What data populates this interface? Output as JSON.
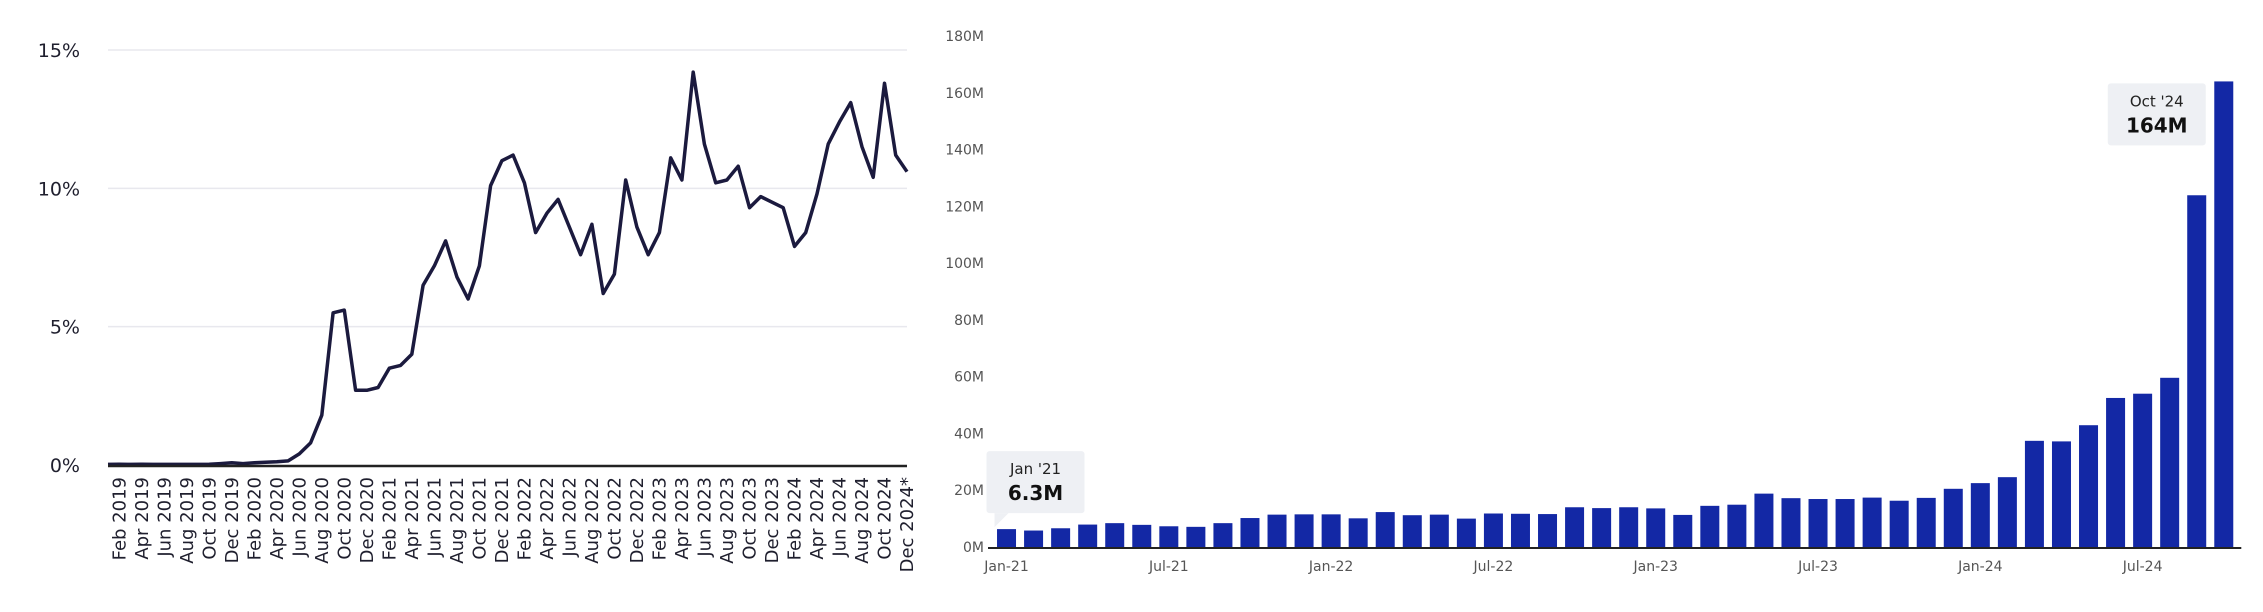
{
  "left_chart": {
    "y_ticks": [
      {
        "value": 0,
        "label": "0%"
      },
      {
        "value": 5,
        "label": "5%"
      },
      {
        "value": 10,
        "label": "10%"
      },
      {
        "value": 15,
        "label": "15%"
      }
    ],
    "x_tick_labels": [
      "Feb 2019",
      "Apr 2019",
      "Jun 2019",
      "Aug 2019",
      "Oct 2019",
      "Dec 2019",
      "Feb 2020",
      "Apr 2020",
      "Jun 2020",
      "Aug 2020",
      "Oct 2020",
      "Dec 2020",
      "Feb 2021",
      "Apr 2021",
      "Jun 2021",
      "Aug 2021",
      "Oct 2021",
      "Dec 2021",
      "Feb 2022",
      "Apr 2022",
      "Jun 2022",
      "Aug 2022",
      "Oct 2022",
      "Dec 2022",
      "Feb 2023",
      "Apr 2023",
      "Jun 2023",
      "Aug 2023",
      "Oct 2023",
      "Dec 2023",
      "Feb 2024",
      "Apr 2024",
      "Jun 2024",
      "Aug 2024",
      "Oct 2024",
      "Dec 2024*"
    ]
  },
  "right_chart": {
    "y_ticks": [
      {
        "value": 0,
        "label": "0M"
      },
      {
        "value": 20,
        "label": "20M"
      },
      {
        "value": 40,
        "label": "40M"
      },
      {
        "value": 60,
        "label": "60M"
      },
      {
        "value": 80,
        "label": "80M"
      },
      {
        "value": 100,
        "label": "100M"
      },
      {
        "value": 120,
        "label": "120M"
      },
      {
        "value": 140,
        "label": "140M"
      },
      {
        "value": 160,
        "label": "160M"
      },
      {
        "value": 180,
        "label": "180M"
      }
    ],
    "x_tick_labels": [
      {
        "index": 0,
        "label": "Jan-21"
      },
      {
        "index": 6,
        "label": "Jul-21"
      },
      {
        "index": 12,
        "label": "Jan-22"
      },
      {
        "index": 18,
        "label": "Jul-22"
      },
      {
        "index": 24,
        "label": "Jan-23"
      },
      {
        "index": 30,
        "label": "Jul-23"
      },
      {
        "index": 36,
        "label": "Jan-24"
      },
      {
        "index": 42,
        "label": "Jul-24"
      }
    ],
    "callouts": [
      {
        "index": 0,
        "title": "Jan '21",
        "value": "6.3M"
      },
      {
        "index": 45,
        "title": "Oct '24",
        "value": "164M"
      }
    ]
  },
  "chart_data": [
    {
      "type": "line",
      "x": [
        "Jan 2019",
        "Feb 2019",
        "Mar 2019",
        "Apr 2019",
        "May 2019",
        "Jun 2019",
        "Jul 2019",
        "Aug 2019",
        "Sep 2019",
        "Oct 2019",
        "Nov 2019",
        "Dec 2019",
        "Jan 2020",
        "Feb 2020",
        "Mar 2020",
        "Apr 2020",
        "May 2020",
        "Jun 2020",
        "Jul 2020",
        "Aug 2020",
        "Sep 2020",
        "Oct 2020",
        "Nov 2020",
        "Dec 2020",
        "Jan 2021",
        "Feb 2021",
        "Mar 2021",
        "Apr 2021",
        "May 2021",
        "Jun 2021",
        "Jul 2021",
        "Aug 2021",
        "Sep 2021",
        "Oct 2021",
        "Nov 2021",
        "Dec 2021",
        "Jan 2022",
        "Feb 2022",
        "Mar 2022",
        "Apr 2022",
        "May 2022",
        "Jun 2022",
        "Jul 2022",
        "Aug 2022",
        "Sep 2022",
        "Oct 2022",
        "Nov 2022",
        "Dec 2022",
        "Jan 2023",
        "Feb 2023",
        "Mar 2023",
        "Apr 2023",
        "May 2023",
        "Jun 2023",
        "Jul 2023",
        "Aug 2023",
        "Sep 2023",
        "Oct 2023",
        "Nov 2023",
        "Dec 2023",
        "Jan 2024",
        "Feb 2024",
        "Mar 2024",
        "Apr 2024",
        "May 2024",
        "Jun 2024",
        "Jul 2024",
        "Aug 2024",
        "Sep 2024",
        "Oct 2024",
        "Nov 2024",
        "Dec 2024"
      ],
      "values": [
        0.02,
        0.03,
        0.02,
        0.03,
        0.02,
        0.02,
        0.02,
        0.02,
        0.02,
        0.03,
        0.05,
        0.08,
        0.05,
        0.08,
        0.1,
        0.12,
        0.15,
        0.4,
        0.8,
        1.8,
        5.5,
        5.6,
        2.7,
        2.7,
        2.8,
        3.5,
        3.6,
        4.0,
        6.5,
        7.2,
        8.1,
        6.8,
        6.0,
        7.2,
        10.1,
        11.0,
        11.2,
        10.2,
        8.4,
        9.1,
        9.6,
        8.6,
        7.6,
        8.7,
        6.2,
        6.9,
        10.3,
        8.6,
        7.6,
        8.4,
        11.1,
        10.3,
        14.2,
        11.6,
        10.2,
        10.3,
        10.8,
        9.3,
        9.7,
        9.5,
        9.3,
        7.9,
        8.4,
        9.8,
        11.6,
        12.4,
        13.1,
        11.5,
        10.4,
        13.8,
        11.2,
        10.6
      ],
      "ylim": [
        0,
        15
      ]
    },
    {
      "type": "bar",
      "categories": [
        "Jan-21",
        "Feb-21",
        "Mar-21",
        "Apr-21",
        "May-21",
        "Jun-21",
        "Jul-21",
        "Aug-21",
        "Sep-21",
        "Oct-21",
        "Nov-21",
        "Dec-21",
        "Jan-22",
        "Feb-22",
        "Mar-22",
        "Apr-22",
        "May-22",
        "Jun-22",
        "Jul-22",
        "Aug-22",
        "Sep-22",
        "Oct-22",
        "Nov-22",
        "Dec-22",
        "Jan-23",
        "Feb-23",
        "Mar-23",
        "Apr-23",
        "May-23",
        "Jun-23",
        "Jul-23",
        "Aug-23",
        "Sep-23",
        "Oct-23",
        "Nov-23",
        "Dec-23",
        "Jan-24",
        "Feb-24",
        "Mar-24",
        "Apr-24",
        "May-24",
        "Jun-24",
        "Jul-24",
        "Aug-24",
        "Sep-24",
        "Oct-24"
      ],
      "values": [
        6.3,
        5.8,
        6.6,
        7.9,
        8.4,
        7.8,
        7.3,
        7.1,
        8.4,
        10.2,
        11.4,
        11.5,
        11.5,
        10.1,
        12.3,
        11.2,
        11.4,
        10.0,
        11.8,
        11.7,
        11.6,
        14.0,
        13.7,
        14.0,
        13.6,
        11.3,
        14.5,
        14.9,
        18.8,
        17.2,
        16.9,
        16.9,
        17.4,
        16.3,
        17.3,
        20.5,
        22.5,
        24.6,
        37.4,
        37.2,
        42.9,
        52.5,
        54.0,
        59.6,
        123.9,
        164.0
      ],
      "ylim": [
        0,
        180
      ]
    }
  ],
  "colors": {
    "line": "#1b1a3e",
    "bar": "#1328a5",
    "axis": "#222222",
    "grid_left": "#e8e8ee",
    "label_left": "#1f1f2e",
    "label_right": "#555555",
    "callout_bg": "#eef0f4"
  }
}
